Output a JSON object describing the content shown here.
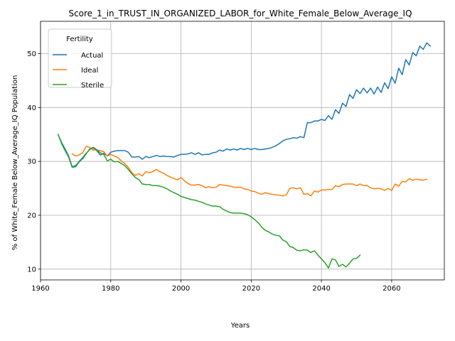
{
  "chart_data": {
    "type": "line",
    "title": "Score_1_in_TRUST_IN_ORGANIZED_LABOR_for_White_Female_Below_Average_IQ",
    "xlabel": "Years",
    "ylabel": "% of White_Female Below_Average_IQ Population",
    "xlim": [
      1960,
      2075
    ],
    "ylim": [
      8,
      56
    ],
    "xticks": [
      1960,
      1980,
      2000,
      2020,
      2040,
      2060
    ],
    "yticks": [
      10,
      20,
      30,
      40,
      50
    ],
    "grid": true,
    "legend": {
      "title": "Fertility",
      "placement": "top-left"
    },
    "series": [
      {
        "name": "Actual",
        "color": "#1f77b4",
        "points": [
          [
            1965,
            35.0
          ],
          [
            1966,
            33.5
          ],
          [
            1967,
            32.3
          ],
          [
            1968,
            31.0
          ],
          [
            1969,
            29.0
          ],
          [
            1970,
            29.2
          ],
          [
            1971,
            30.0
          ],
          [
            1972,
            30.7
          ],
          [
            1973,
            31.5
          ],
          [
            1974,
            32.2
          ],
          [
            1975,
            32.5
          ],
          [
            1976,
            32.0
          ],
          [
            1977,
            31.2
          ],
          [
            1978,
            31.5
          ],
          [
            1979,
            31.0
          ],
          [
            1980,
            31.7
          ],
          [
            1981,
            31.9
          ],
          [
            1982,
            32.0
          ],
          [
            1983,
            32.0
          ],
          [
            1984,
            32.0
          ],
          [
            1985,
            31.7
          ],
          [
            1986,
            30.8
          ],
          [
            1987,
            30.8
          ],
          [
            1988,
            30.9
          ],
          [
            1989,
            30.4
          ],
          [
            1990,
            30.9
          ],
          [
            1991,
            30.7
          ],
          [
            1992,
            30.9
          ],
          [
            1993,
            31.1
          ],
          [
            1994,
            30.9
          ],
          [
            1995,
            31.0
          ],
          [
            1996,
            30.9
          ],
          [
            1997,
            30.9
          ],
          [
            1998,
            30.8
          ],
          [
            1999,
            31.1
          ],
          [
            2000,
            31.3
          ],
          [
            2001,
            31.3
          ],
          [
            2002,
            31.4
          ],
          [
            2003,
            31.6
          ],
          [
            2004,
            31.3
          ],
          [
            2005,
            31.6
          ],
          [
            2006,
            31.2
          ],
          [
            2007,
            31.3
          ],
          [
            2008,
            31.3
          ],
          [
            2009,
            31.6
          ],
          [
            2010,
            31.7
          ],
          [
            2011,
            32.1
          ],
          [
            2012,
            31.9
          ],
          [
            2013,
            32.3
          ],
          [
            2014,
            32.1
          ],
          [
            2015,
            32.3
          ],
          [
            2016,
            32.1
          ],
          [
            2017,
            32.4
          ],
          [
            2018,
            32.2
          ],
          [
            2019,
            32.4
          ],
          [
            2020,
            32.2
          ],
          [
            2021,
            32.4
          ],
          [
            2022,
            32.2
          ],
          [
            2023,
            32.2
          ],
          [
            2024,
            32.3
          ],
          [
            2025,
            32.4
          ],
          [
            2026,
            32.6
          ],
          [
            2027,
            32.9
          ],
          [
            2028,
            33.3
          ],
          [
            2029,
            33.8
          ],
          [
            2030,
            34.1
          ],
          [
            2031,
            34.2
          ],
          [
            2032,
            34.4
          ],
          [
            2033,
            34.3
          ],
          [
            2034,
            34.6
          ],
          [
            2035,
            34.4
          ],
          [
            2036,
            37.2
          ],
          [
            2037,
            37.2
          ],
          [
            2038,
            37.5
          ],
          [
            2039,
            37.5
          ],
          [
            2040,
            37.8
          ],
          [
            2041,
            37.6
          ],
          [
            2042,
            38.5
          ],
          [
            2043,
            37.8
          ],
          [
            2044,
            39.6
          ],
          [
            2045,
            38.9
          ],
          [
            2046,
            40.8
          ],
          [
            2047,
            40.2
          ],
          [
            2048,
            42.4
          ],
          [
            2049,
            41.7
          ],
          [
            2050,
            43.3
          ],
          [
            2051,
            42.6
          ],
          [
            2052,
            43.6
          ],
          [
            2053,
            42.7
          ],
          [
            2054,
            43.6
          ],
          [
            2055,
            42.5
          ],
          [
            2056,
            43.8
          ],
          [
            2057,
            42.8
          ],
          [
            2058,
            44.6
          ],
          [
            2059,
            43.5
          ],
          [
            2060,
            45.7
          ],
          [
            2061,
            44.5
          ],
          [
            2062,
            47.3
          ],
          [
            2063,
            46.1
          ],
          [
            2064,
            48.9
          ],
          [
            2065,
            47.9
          ],
          [
            2066,
            50.2
          ],
          [
            2067,
            49.6
          ],
          [
            2068,
            51.4
          ],
          [
            2069,
            50.8
          ],
          [
            2070,
            52.0
          ],
          [
            2071,
            51.4
          ]
        ]
      },
      {
        "name": "Ideal",
        "color": "#ff7f0e",
        "points": [
          [
            1969,
            31.4
          ],
          [
            1970,
            31.0
          ],
          [
            1971,
            31.2
          ],
          [
            1972,
            31.6
          ],
          [
            1973,
            32.8
          ],
          [
            1974,
            32.6
          ],
          [
            1975,
            32.1
          ],
          [
            1976,
            32.1
          ],
          [
            1977,
            32.0
          ],
          [
            1978,
            31.8
          ],
          [
            1979,
            31.0
          ],
          [
            1980,
            31.3
          ],
          [
            1981,
            31.0
          ],
          [
            1982,
            30.7
          ],
          [
            1983,
            30.1
          ],
          [
            1984,
            29.6
          ],
          [
            1985,
            28.9
          ],
          [
            1986,
            27.9
          ],
          [
            1987,
            27.4
          ],
          [
            1988,
            27.7
          ],
          [
            1989,
            27.3
          ],
          [
            1990,
            28.1
          ],
          [
            1991,
            27.9
          ],
          [
            1992,
            28.1
          ],
          [
            1993,
            28.5
          ],
          [
            1994,
            28.1
          ],
          [
            1995,
            27.8
          ],
          [
            1996,
            27.4
          ],
          [
            1997,
            27.1
          ],
          [
            1998,
            26.8
          ],
          [
            1999,
            26.6
          ],
          [
            2000,
            27.0
          ],
          [
            2001,
            26.4
          ],
          [
            2002,
            25.9
          ],
          [
            2003,
            25.6
          ],
          [
            2004,
            25.6
          ],
          [
            2005,
            25.7
          ],
          [
            2006,
            25.5
          ],
          [
            2007,
            25.1
          ],
          [
            2008,
            25.3
          ],
          [
            2009,
            25.1
          ],
          [
            2010,
            25.2
          ],
          [
            2011,
            25.7
          ],
          [
            2012,
            25.6
          ],
          [
            2013,
            25.5
          ],
          [
            2014,
            25.4
          ],
          [
            2015,
            25.2
          ],
          [
            2016,
            25.2
          ],
          [
            2017,
            25.2
          ],
          [
            2018,
            24.9
          ],
          [
            2019,
            24.8
          ],
          [
            2020,
            24.5
          ],
          [
            2021,
            24.4
          ],
          [
            2022,
            24.1
          ],
          [
            2023,
            23.9
          ],
          [
            2024,
            24.2
          ],
          [
            2025,
            24.0
          ],
          [
            2026,
            23.9
          ],
          [
            2027,
            23.8
          ],
          [
            2028,
            23.7
          ],
          [
            2029,
            23.6
          ],
          [
            2030,
            23.8
          ],
          [
            2031,
            25.0
          ],
          [
            2032,
            25.1
          ],
          [
            2033,
            24.9
          ],
          [
            2034,
            25.1
          ],
          [
            2035,
            23.9
          ],
          [
            2036,
            24.0
          ],
          [
            2037,
            23.6
          ],
          [
            2038,
            24.5
          ],
          [
            2039,
            24.3
          ],
          [
            2040,
            24.7
          ],
          [
            2041,
            24.7
          ],
          [
            2042,
            24.8
          ],
          [
            2043,
            24.8
          ],
          [
            2044,
            25.5
          ],
          [
            2045,
            25.3
          ],
          [
            2046,
            25.7
          ],
          [
            2047,
            25.8
          ],
          [
            2048,
            25.8
          ],
          [
            2049,
            25.8
          ],
          [
            2050,
            25.5
          ],
          [
            2051,
            25.8
          ],
          [
            2052,
            25.5
          ],
          [
            2053,
            25.5
          ],
          [
            2054,
            25.1
          ],
          [
            2055,
            24.9
          ],
          [
            2056,
            25.0
          ],
          [
            2057,
            24.9
          ],
          [
            2058,
            24.6
          ],
          [
            2059,
            25.0
          ],
          [
            2060,
            24.6
          ],
          [
            2061,
            25.8
          ],
          [
            2062,
            25.4
          ],
          [
            2063,
            26.3
          ],
          [
            2064,
            26.2
          ],
          [
            2065,
            26.8
          ],
          [
            2066,
            26.5
          ],
          [
            2067,
            26.7
          ],
          [
            2068,
            26.6
          ],
          [
            2069,
            26.5
          ],
          [
            2070,
            26.7
          ]
        ]
      },
      {
        "name": "Sterile",
        "color": "#2ca02c",
        "points": [
          [
            1965,
            35.0
          ],
          [
            1966,
            33.3
          ],
          [
            1967,
            32.0
          ],
          [
            1968,
            30.8
          ],
          [
            1969,
            28.9
          ],
          [
            1970,
            29.0
          ],
          [
            1971,
            29.9
          ],
          [
            1972,
            30.5
          ],
          [
            1973,
            31.4
          ],
          [
            1974,
            32.3
          ],
          [
            1975,
            32.6
          ],
          [
            1976,
            32.2
          ],
          [
            1977,
            31.6
          ],
          [
            1978,
            31.3
          ],
          [
            1979,
            30.1
          ],
          [
            1980,
            30.4
          ],
          [
            1981,
            29.9
          ],
          [
            1982,
            30.0
          ],
          [
            1983,
            29.6
          ],
          [
            1984,
            29.2
          ],
          [
            1985,
            28.5
          ],
          [
            1986,
            27.7
          ],
          [
            1987,
            27.0
          ],
          [
            1988,
            26.6
          ],
          [
            1989,
            25.8
          ],
          [
            1990,
            25.7
          ],
          [
            1991,
            25.7
          ],
          [
            1992,
            25.5
          ],
          [
            1993,
            25.5
          ],
          [
            1994,
            25.4
          ],
          [
            1995,
            25.2
          ],
          [
            1996,
            24.9
          ],
          [
            1997,
            24.5
          ],
          [
            1998,
            24.2
          ],
          [
            1999,
            23.9
          ],
          [
            2000,
            23.5
          ],
          [
            2001,
            23.3
          ],
          [
            2002,
            23.1
          ],
          [
            2003,
            22.9
          ],
          [
            2004,
            22.8
          ],
          [
            2005,
            22.6
          ],
          [
            2006,
            22.4
          ],
          [
            2007,
            22.1
          ],
          [
            2008,
            21.9
          ],
          [
            2009,
            21.7
          ],
          [
            2010,
            21.7
          ],
          [
            2011,
            21.6
          ],
          [
            2012,
            21.1
          ],
          [
            2013,
            20.8
          ],
          [
            2014,
            20.5
          ],
          [
            2015,
            20.4
          ],
          [
            2016,
            20.4
          ],
          [
            2017,
            20.4
          ],
          [
            2018,
            20.3
          ],
          [
            2019,
            20.1
          ],
          [
            2020,
            19.7
          ],
          [
            2021,
            19.2
          ],
          [
            2022,
            18.6
          ],
          [
            2023,
            17.8
          ],
          [
            2024,
            17.2
          ],
          [
            2025,
            16.9
          ],
          [
            2026,
            16.5
          ],
          [
            2027,
            16.3
          ],
          [
            2028,
            16.2
          ],
          [
            2029,
            15.4
          ],
          [
            2030,
            15.1
          ],
          [
            2031,
            14.2
          ],
          [
            2032,
            14.0
          ],
          [
            2033,
            13.5
          ],
          [
            2034,
            13.4
          ],
          [
            2035,
            13.6
          ],
          [
            2036,
            13.5
          ],
          [
            2037,
            13.1
          ],
          [
            2038,
            13.4
          ],
          [
            2039,
            12.6
          ],
          [
            2040,
            11.9
          ],
          [
            2041,
            11.2
          ],
          [
            2042,
            10.2
          ],
          [
            2043,
            11.9
          ],
          [
            2044,
            11.7
          ],
          [
            2045,
            10.5
          ],
          [
            2046,
            10.9
          ],
          [
            2047,
            10.4
          ],
          [
            2048,
            11.1
          ],
          [
            2049,
            11.9
          ],
          [
            2050,
            12.0
          ],
          [
            2051,
            12.6
          ]
        ]
      }
    ]
  }
}
